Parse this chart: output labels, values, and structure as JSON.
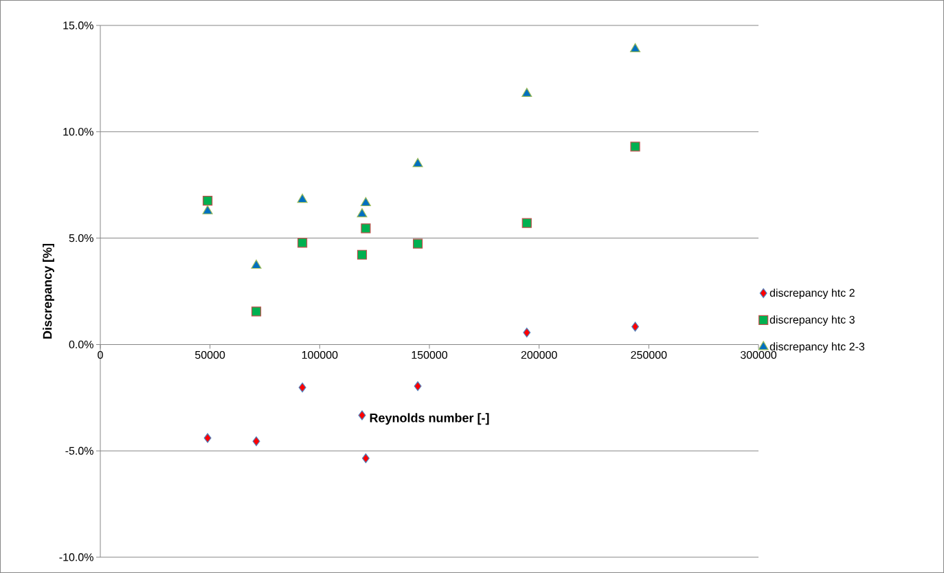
{
  "chart_data": {
    "type": "scatter",
    "xlabel": "Reynolds number [-]",
    "ylabel": "Discrepancy [%]",
    "xlim": [
      0,
      300000
    ],
    "xticks": [
      0,
      50000,
      100000,
      150000,
      200000,
      250000,
      300000
    ],
    "ylim": [
      -10,
      15
    ],
    "yticks": [
      {
        "value": -10,
        "label": "-10.0%"
      },
      {
        "value": -5,
        "label": "-5.0%"
      },
      {
        "value": 0,
        "label": "0.0%"
      },
      {
        "value": 5,
        "label": "5.0%"
      },
      {
        "value": 10,
        "label": "10.0%"
      },
      {
        "value": 15,
        "label": "15.0%"
      }
    ],
    "grid": "y",
    "legend": "right",
    "x": [
      48900,
      71100,
      92100,
      119300,
      121000,
      144700,
      194400,
      243800
    ],
    "series": [
      {
        "name": "discrepancy htc 2",
        "color": "#ff0000",
        "marker": "diamond",
        "values": [
          -4.4,
          -4.55,
          -2.02,
          -3.33,
          -5.35,
          -1.96,
          0.56,
          0.84
        ]
      },
      {
        "name": "discrepancy htc 3",
        "color": "#00b050",
        "marker": "square",
        "values": [
          6.76,
          1.55,
          4.78,
          4.22,
          5.46,
          4.74,
          5.71,
          9.3
        ]
      },
      {
        "name": "discrepancy htc 2-3",
        "color": "#0070c0",
        "marker": "triangle",
        "values": [
          6.27,
          3.71,
          6.81,
          6.13,
          6.65,
          8.49,
          11.79,
          13.89
        ]
      }
    ]
  }
}
